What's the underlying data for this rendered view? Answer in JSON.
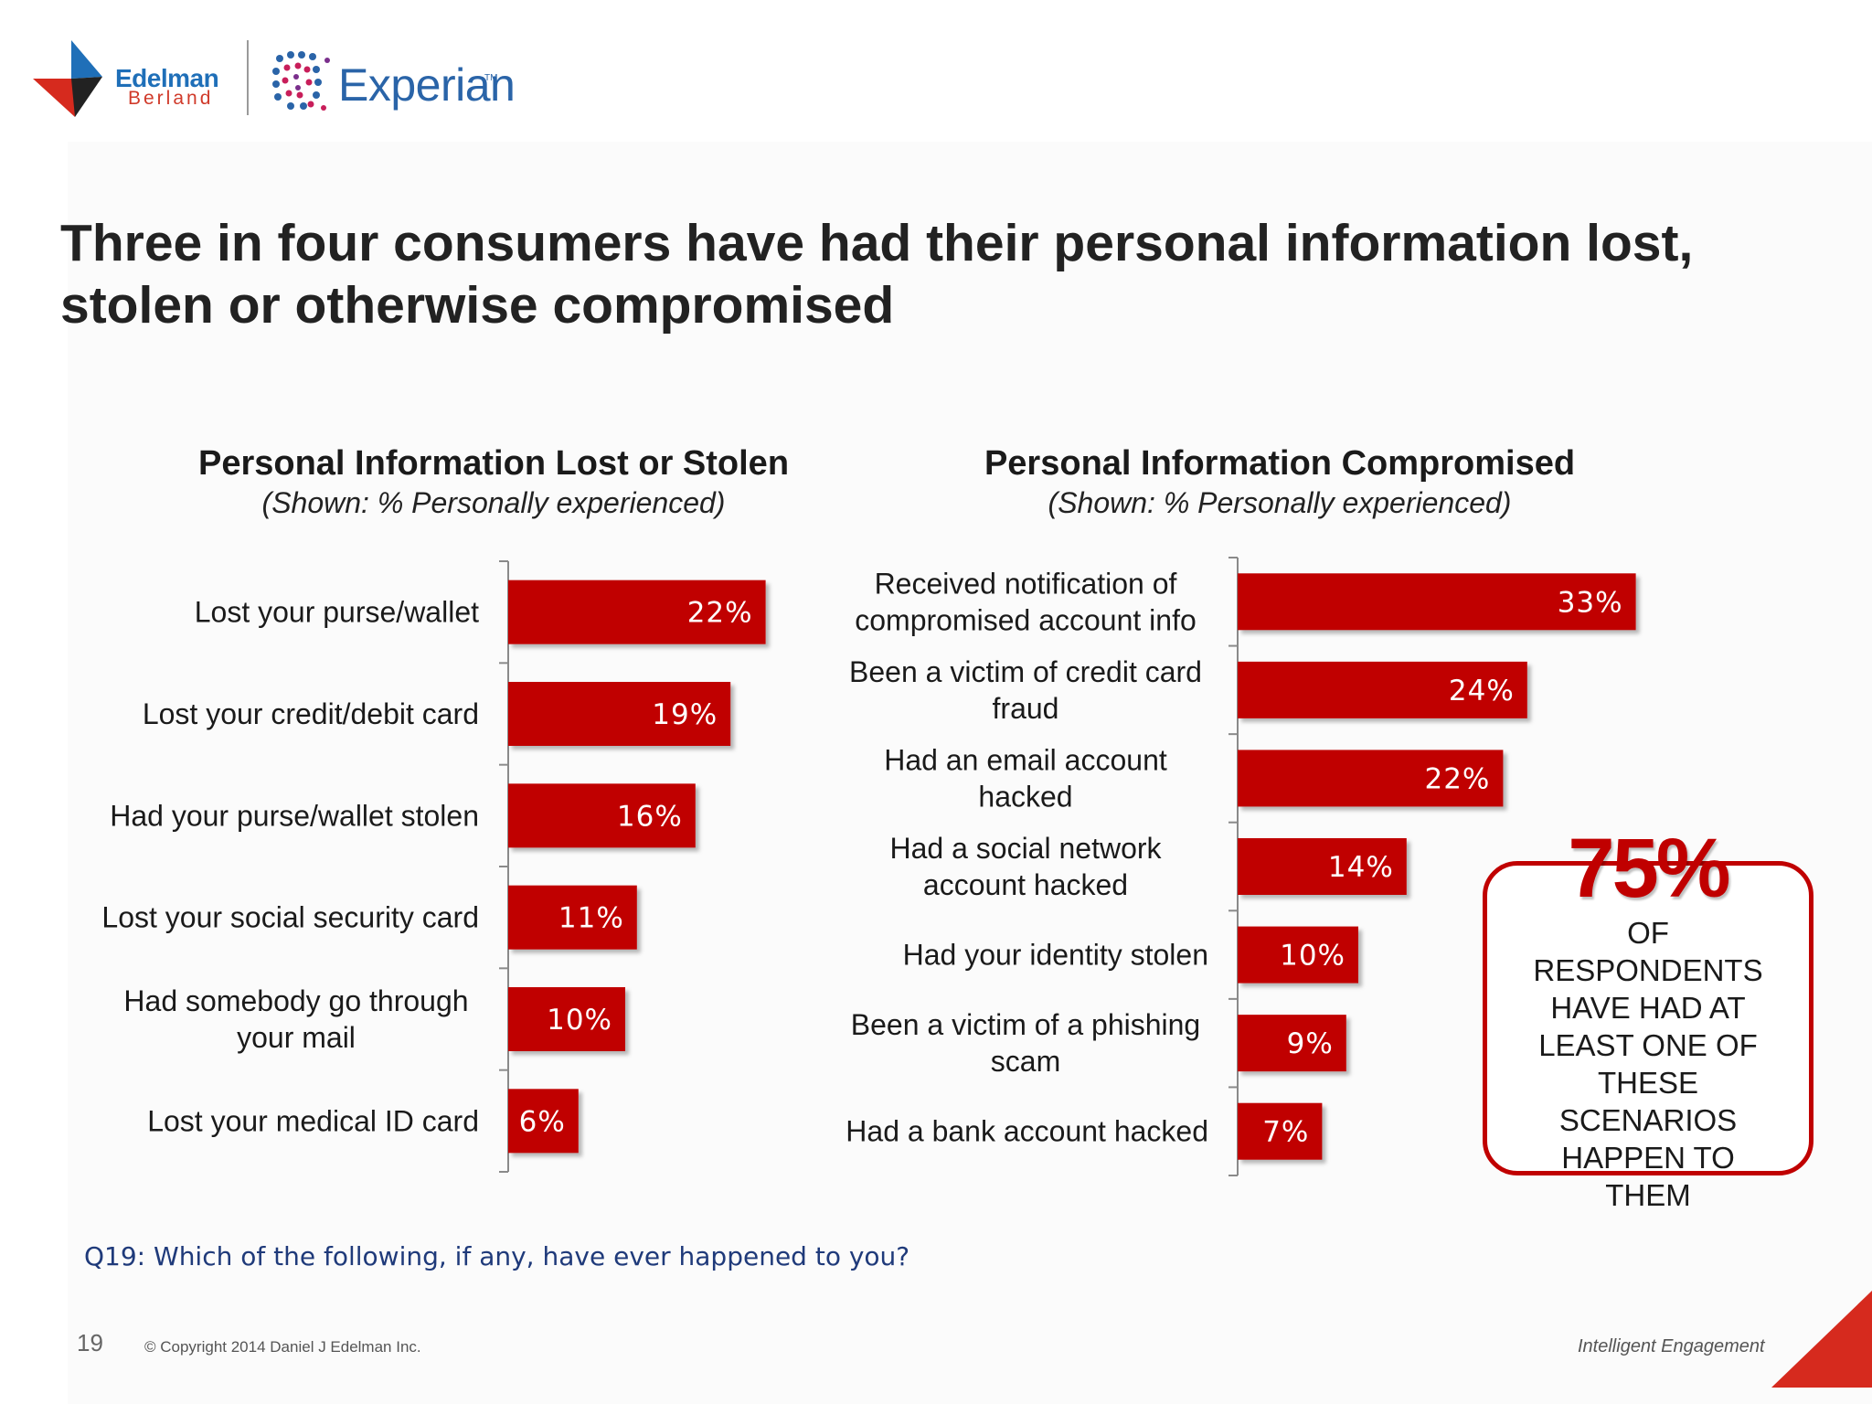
{
  "logos": {
    "edelman_word": "Edelman",
    "berland_word": "Berland",
    "experian_word": "Experian",
    "experian_tm": "TM"
  },
  "headline": "Three in four consumers have had their personal information lost, stolen or otherwise compromised",
  "colors": {
    "bar": "#c00000",
    "accent": "#c00000",
    "question": "#1f3a7a"
  },
  "chart_data": [
    {
      "type": "bar",
      "orientation": "horizontal",
      "title": "Personal Information Lost or Stolen",
      "subtitle": "(Shown: % Personally experienced)",
      "categories": [
        [
          "Lost your purse/wallet"
        ],
        [
          "Lost your credit/debit card"
        ],
        [
          "Had your purse/wallet stolen"
        ],
        [
          "Lost your social security card"
        ],
        [
          "Had somebody go through",
          "your mail"
        ],
        [
          "Lost  your medical ID card"
        ]
      ],
      "values": [
        22,
        19,
        16,
        11,
        10,
        6
      ],
      "value_labels": [
        "22%",
        "19%",
        "16%",
        "11%",
        "10%",
        "6%"
      ],
      "unit": "%"
    },
    {
      "type": "bar",
      "orientation": "horizontal",
      "title": "Personal Information Compromised",
      "subtitle": "(Shown: % Personally experienced)",
      "categories": [
        [
          "Received notification of",
          "compromised account info"
        ],
        [
          "Been a victim of credit card",
          "fraud"
        ],
        [
          "Had an email account",
          "hacked"
        ],
        [
          "Had a social network",
          "account hacked"
        ],
        [
          "Had your identity stolen"
        ],
        [
          "Been a victim of a phishing",
          "scam"
        ],
        [
          "Had a bank account hacked"
        ]
      ],
      "values": [
        33,
        24,
        22,
        14,
        10,
        9,
        7
      ],
      "value_labels": [
        "33%",
        "24%",
        "22%",
        "14%",
        "10%",
        "9%",
        "7%"
      ],
      "unit": "%"
    }
  ],
  "callout": {
    "value": "75%",
    "text": "OF\nRESPONDENTS\nHAVE HAD AT\nLEAST ONE OF\nTHESE\nSCENARIOS\nHAPPEN TO\nTHEM"
  },
  "footer": {
    "question": "Q19: Which of the following, if any, have ever happened to you?",
    "page_number": "19",
    "copyright": "© Copyright 2014 Daniel J Edelman Inc.",
    "tagline": "Intelligent Engagement"
  }
}
